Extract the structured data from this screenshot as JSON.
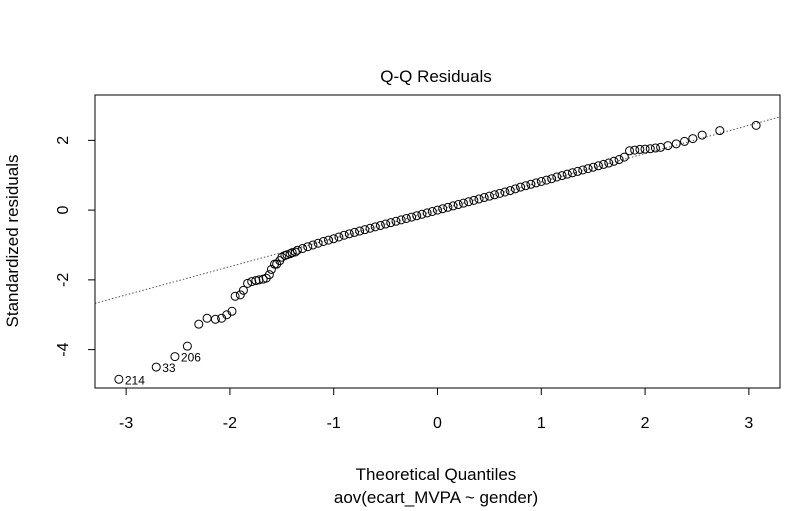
{
  "chart_data": {
    "type": "scatter",
    "title": "Q-Q Residuals",
    "xlabel": "Theoretical Quantiles",
    "subtitle": "aov(ecart_MVPA ~ gender)",
    "ylabel": "Standardized residuals",
    "xlim": [
      -3.3,
      3.3
    ],
    "ylim": [
      -5.1,
      3.3
    ],
    "xticks": [
      "-3",
      "-2",
      "-1",
      "0",
      "1",
      "2",
      "3"
    ],
    "yticks": [
      "-4",
      "-2",
      "0",
      "2"
    ],
    "reference_line": {
      "slope": 0.81,
      "intercept": 0.0,
      "style": "dotted"
    },
    "points": [
      {
        "x": -3.07,
        "y": -4.85
      },
      {
        "x": -2.71,
        "y": -4.5
      },
      {
        "x": -2.53,
        "y": -4.2
      },
      {
        "x": -2.41,
        "y": -3.9
      },
      {
        "x": -2.3,
        "y": -3.27
      },
      {
        "x": -2.22,
        "y": -3.1
      },
      {
        "x": -2.14,
        "y": -3.13
      },
      {
        "x": -2.08,
        "y": -3.1
      },
      {
        "x": -2.03,
        "y": -3.0
      },
      {
        "x": -1.98,
        "y": -2.9
      },
      {
        "x": -1.95,
        "y": -2.47
      },
      {
        "x": -1.9,
        "y": -2.43
      },
      {
        "x": -1.87,
        "y": -2.3
      },
      {
        "x": -1.83,
        "y": -2.1
      },
      {
        "x": -1.79,
        "y": -2.05
      },
      {
        "x": -1.75,
        "y": -2.02
      },
      {
        "x": -1.72,
        "y": -2.0
      },
      {
        "x": -1.68,
        "y": -1.98
      },
      {
        "x": -1.65,
        "y": -1.95
      },
      {
        "x": -1.62,
        "y": -1.85
      },
      {
        "x": -1.6,
        "y": -1.7
      },
      {
        "x": -1.57,
        "y": -1.55
      },
      {
        "x": -1.55,
        "y": -1.55
      },
      {
        "x": -1.52,
        "y": -1.45
      },
      {
        "x": -1.5,
        "y": -1.35
      },
      {
        "x": -1.47,
        "y": -1.3
      },
      {
        "x": -1.45,
        "y": -1.28
      },
      {
        "x": -1.42,
        "y": -1.25
      },
      {
        "x": -1.4,
        "y": -1.22
      },
      {
        "x": -1.37,
        "y": -1.2
      },
      {
        "x": -1.35,
        "y": -1.15
      },
      {
        "x": -1.3,
        "y": -1.1
      },
      {
        "x": -1.25,
        "y": -1.05
      },
      {
        "x": -1.2,
        "y": -1.0
      },
      {
        "x": -1.15,
        "y": -0.95
      },
      {
        "x": -1.1,
        "y": -0.9
      },
      {
        "x": -1.05,
        "y": -0.86
      },
      {
        "x": -1.0,
        "y": -0.82
      },
      {
        "x": -0.95,
        "y": -0.77
      },
      {
        "x": -0.9,
        "y": -0.72
      },
      {
        "x": -0.85,
        "y": -0.68
      },
      {
        "x": -0.8,
        "y": -0.64
      },
      {
        "x": -0.75,
        "y": -0.6
      },
      {
        "x": -0.7,
        "y": -0.56
      },
      {
        "x": -0.65,
        "y": -0.52
      },
      {
        "x": -0.6,
        "y": -0.48
      },
      {
        "x": -0.55,
        "y": -0.44
      },
      {
        "x": -0.5,
        "y": -0.4
      },
      {
        "x": -0.45,
        "y": -0.36
      },
      {
        "x": -0.4,
        "y": -0.32
      },
      {
        "x": -0.35,
        "y": -0.28
      },
      {
        "x": -0.3,
        "y": -0.24
      },
      {
        "x": -0.25,
        "y": -0.2
      },
      {
        "x": -0.2,
        "y": -0.16
      },
      {
        "x": -0.15,
        "y": -0.12
      },
      {
        "x": -0.1,
        "y": -0.08
      },
      {
        "x": -0.05,
        "y": -0.04
      },
      {
        "x": 0.0,
        "y": 0.0
      },
      {
        "x": 0.05,
        "y": 0.04
      },
      {
        "x": 0.1,
        "y": 0.08
      },
      {
        "x": 0.15,
        "y": 0.12
      },
      {
        "x": 0.2,
        "y": 0.16
      },
      {
        "x": 0.25,
        "y": 0.2
      },
      {
        "x": 0.3,
        "y": 0.24
      },
      {
        "x": 0.35,
        "y": 0.28
      },
      {
        "x": 0.4,
        "y": 0.32
      },
      {
        "x": 0.45,
        "y": 0.36
      },
      {
        "x": 0.5,
        "y": 0.4
      },
      {
        "x": 0.55,
        "y": 0.44
      },
      {
        "x": 0.6,
        "y": 0.48
      },
      {
        "x": 0.65,
        "y": 0.52
      },
      {
        "x": 0.7,
        "y": 0.56
      },
      {
        "x": 0.75,
        "y": 0.61
      },
      {
        "x": 0.8,
        "y": 0.66
      },
      {
        "x": 0.85,
        "y": 0.7
      },
      {
        "x": 0.9,
        "y": 0.74
      },
      {
        "x": 0.95,
        "y": 0.78
      },
      {
        "x": 1.0,
        "y": 0.82
      },
      {
        "x": 1.05,
        "y": 0.86
      },
      {
        "x": 1.1,
        "y": 0.9
      },
      {
        "x": 1.15,
        "y": 0.95
      },
      {
        "x": 1.2,
        "y": 0.99
      },
      {
        "x": 1.25,
        "y": 1.03
      },
      {
        "x": 1.3,
        "y": 1.07
      },
      {
        "x": 1.35,
        "y": 1.11
      },
      {
        "x": 1.4,
        "y": 1.15
      },
      {
        "x": 1.45,
        "y": 1.19
      },
      {
        "x": 1.5,
        "y": 1.23
      },
      {
        "x": 1.55,
        "y": 1.27
      },
      {
        "x": 1.6,
        "y": 1.31
      },
      {
        "x": 1.65,
        "y": 1.35
      },
      {
        "x": 1.7,
        "y": 1.4
      },
      {
        "x": 1.75,
        "y": 1.45
      },
      {
        "x": 1.8,
        "y": 1.52
      },
      {
        "x": 1.85,
        "y": 1.7
      },
      {
        "x": 1.9,
        "y": 1.72
      },
      {
        "x": 1.95,
        "y": 1.74
      },
      {
        "x": 2.0,
        "y": 1.75
      },
      {
        "x": 2.05,
        "y": 1.76
      },
      {
        "x": 2.1,
        "y": 1.78
      },
      {
        "x": 2.15,
        "y": 1.8
      },
      {
        "x": 2.22,
        "y": 1.85
      },
      {
        "x": 2.3,
        "y": 1.9
      },
      {
        "x": 2.38,
        "y": 1.97
      },
      {
        "x": 2.46,
        "y": 2.05
      },
      {
        "x": 2.55,
        "y": 2.15
      },
      {
        "x": 2.72,
        "y": 2.28
      },
      {
        "x": 3.07,
        "y": 2.43
      }
    ],
    "point_labels": [
      {
        "x": -3.07,
        "y": -4.85,
        "label": "214"
      },
      {
        "x": -2.71,
        "y": -4.5,
        "label": "33"
      },
      {
        "x": -2.53,
        "y": -4.2,
        "label": "206"
      }
    ]
  }
}
